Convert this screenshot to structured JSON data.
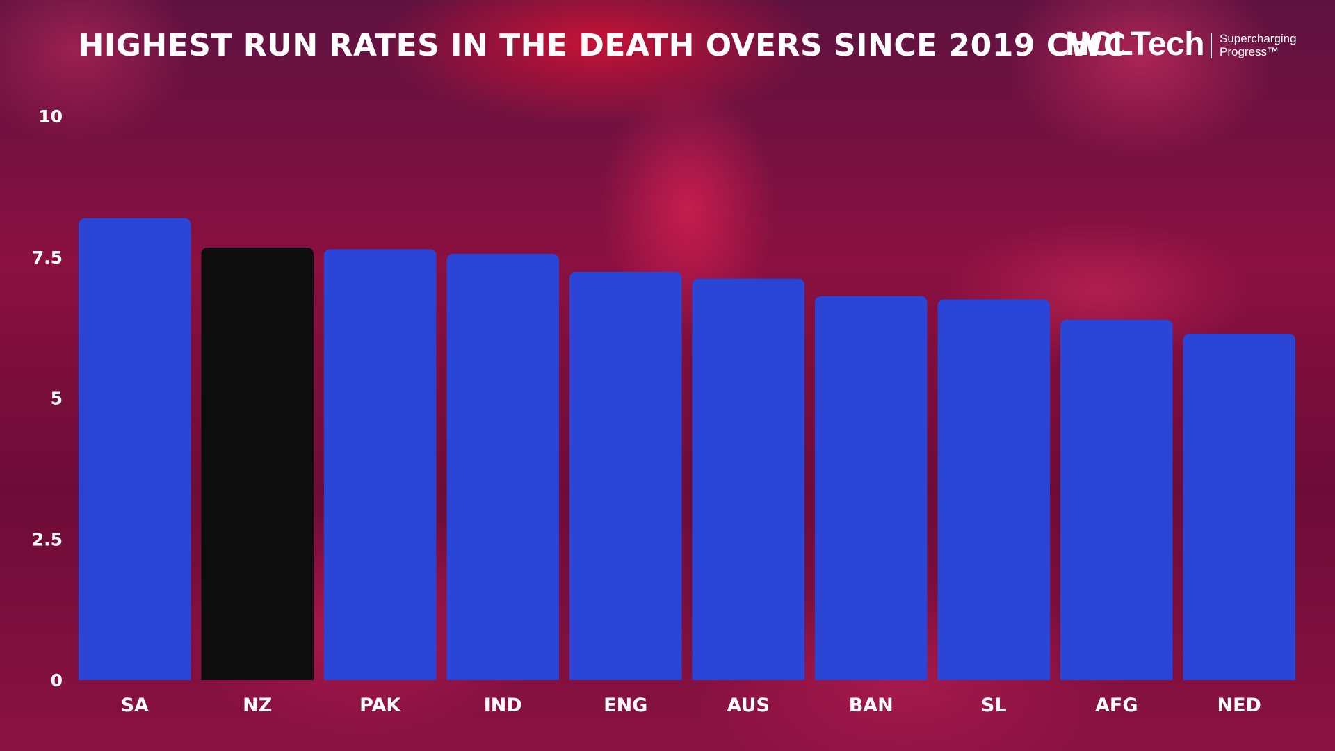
{
  "brand": {
    "name": "HCLTech",
    "tagline_line1": "Supercharging",
    "tagline_line2": "Progress™"
  },
  "colors": {
    "bar": "#2b46d6",
    "highlight_bar": "#0d0d0d",
    "text": "#ffffff"
  },
  "chart_data": {
    "type": "bar",
    "title": "HIGHEST RUN RATES IN THE DEATH OVERS SINCE 2019 CWC",
    "xlabel": "",
    "ylabel": "",
    "categories": [
      "SA",
      "NZ",
      "PAK",
      "IND",
      "ENG",
      "AUS",
      "BAN",
      "SL",
      "AFG",
      "NED"
    ],
    "values": [
      8.19,
      7.67,
      7.64,
      7.56,
      7.24,
      7.12,
      6.81,
      6.75,
      6.39,
      6.14
    ],
    "highlight": "NZ",
    "ylim": [
      0,
      10
    ],
    "yticks": [
      {
        "value": 0,
        "label": "0"
      },
      {
        "value": 2.5,
        "label": "2.5"
      },
      {
        "value": 5,
        "label": "5"
      },
      {
        "value": 7.5,
        "label": "7.5"
      },
      {
        "value": 10,
        "label": "10"
      }
    ],
    "grid": false,
    "legend": "none"
  }
}
